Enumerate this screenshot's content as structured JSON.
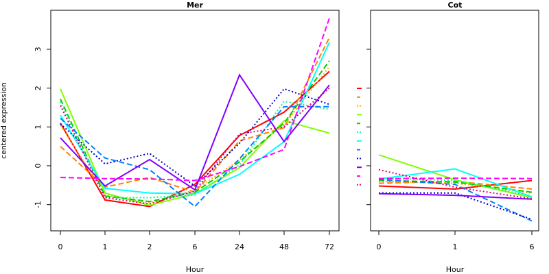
{
  "chart_data": [
    {
      "type": "line",
      "title": "Mer",
      "xlabel": "Hour",
      "ylabel": "centered expression",
      "categories": [
        "0",
        "1",
        "2",
        "6",
        "24",
        "48",
        "72"
      ],
      "yticks": [
        -1,
        0,
        1,
        2,
        3
      ],
      "ylim": [
        -1.65,
        3.9
      ],
      "grid": false,
      "series": [
        {
          "color": "#ff0000",
          "dash": "solid",
          "values": [
            1.1,
            -0.88,
            -1.05,
            -0.48,
            0.78,
            1.38,
            2.43
          ]
        },
        {
          "color": "#ff7f00",
          "dash": "dashed",
          "values": [
            0.5,
            -0.55,
            -0.3,
            -0.68,
            0.64,
            0.98,
            3.3
          ]
        },
        {
          "color": "#ffaa00",
          "dash": "dotted",
          "values": [
            1.05,
            -0.75,
            -0.95,
            -0.62,
            0.15,
            1.05,
            2.55
          ]
        },
        {
          "color": "#7fff00",
          "dash": "solid",
          "values": [
            1.98,
            -0.7,
            -1.02,
            -0.72,
            -0.05,
            1.16,
            0.84
          ]
        },
        {
          "color": "#00cc00",
          "dash": "dashed",
          "values": [
            1.72,
            -0.78,
            -0.92,
            -0.68,
            0.1,
            1.1,
            2.7
          ]
        },
        {
          "color": "#00ff7f",
          "dash": "dotted",
          "values": [
            1.65,
            -0.82,
            -0.82,
            -0.75,
            0.02,
            1.66,
            1.45
          ]
        },
        {
          "color": "#00ffff",
          "dash": "solid",
          "values": [
            1.3,
            -0.58,
            -0.7,
            -0.72,
            -0.22,
            0.62,
            3.18
          ]
        },
        {
          "color": "#0080ff",
          "dash": "dashed",
          "values": [
            1.22,
            0.2,
            -0.1,
            -1.05,
            0.18,
            1.52,
            1.52
          ]
        },
        {
          "color": "#0000cc",
          "dash": "dotted",
          "values": [
            1.08,
            0.05,
            0.32,
            -0.52,
            0.58,
            1.98,
            1.58
          ]
        },
        {
          "color": "#7f00ff",
          "dash": "solid",
          "values": [
            0.72,
            -0.52,
            0.16,
            -0.62,
            2.34,
            0.62,
            2.08
          ]
        },
        {
          "color": "#ff00ff",
          "dash": "dashed",
          "values": [
            -0.3,
            -0.33,
            -0.34,
            -0.38,
            -0.02,
            0.42,
            3.8
          ]
        },
        {
          "color": "#dd0077",
          "dash": "dotted",
          "values": [
            1.55,
            -0.82,
            -0.98,
            -0.65,
            0.82,
            1.0,
            2.0
          ]
        }
      ]
    },
    {
      "type": "line",
      "title": "Cot",
      "xlabel": "Hour",
      "categories": [
        "0",
        "1",
        "6"
      ],
      "ylim": [
        -1.65,
        3.9
      ],
      "grid": false,
      "series": [
        {
          "color": "#ff0000",
          "dash": "solid",
          "values": [
            -0.52,
            -0.6,
            -0.38
          ]
        },
        {
          "color": "#ff7f00",
          "dash": "dashed",
          "values": [
            -0.45,
            -0.4,
            -0.6
          ]
        },
        {
          "color": "#ffaa00",
          "dash": "dotted",
          "values": [
            -0.4,
            -0.45,
            -0.7
          ]
        },
        {
          "color": "#7fff00",
          "dash": "solid",
          "values": [
            0.28,
            -0.36,
            -0.82
          ]
        },
        {
          "color": "#00cc00",
          "dash": "dashed",
          "values": [
            -0.38,
            -0.42,
            -0.68
          ]
        },
        {
          "color": "#00ff7f",
          "dash": "dotted",
          "values": [
            -0.32,
            -0.38,
            -0.78
          ]
        },
        {
          "color": "#00ffff",
          "dash": "solid",
          "values": [
            -0.34,
            -0.08,
            -0.8
          ]
        },
        {
          "color": "#0080ff",
          "dash": "dashed",
          "values": [
            -0.35,
            -0.48,
            -1.42
          ]
        },
        {
          "color": "#0000cc",
          "dash": "dotted",
          "values": [
            -0.7,
            -0.7,
            -1.38
          ]
        },
        {
          "color": "#7f00ff",
          "dash": "solid",
          "values": [
            -0.72,
            -0.76,
            -0.86
          ]
        },
        {
          "color": "#ff00ff",
          "dash": "dashed",
          "values": [
            -0.33,
            -0.32,
            -0.33
          ]
        },
        {
          "color": "#dd0077",
          "dash": "dotted",
          "values": [
            -0.1,
            -0.55,
            -0.85
          ]
        }
      ]
    }
  ],
  "legend": {
    "placement": "between-panels",
    "colors": [
      "#ff0000",
      "#ff7f00",
      "#ffaa00",
      "#7fff00",
      "#00cc00",
      "#00ff7f",
      "#00ffff",
      "#0080ff",
      "#0000cc",
      "#7f00ff",
      "#ff00ff",
      "#dd0077"
    ]
  }
}
